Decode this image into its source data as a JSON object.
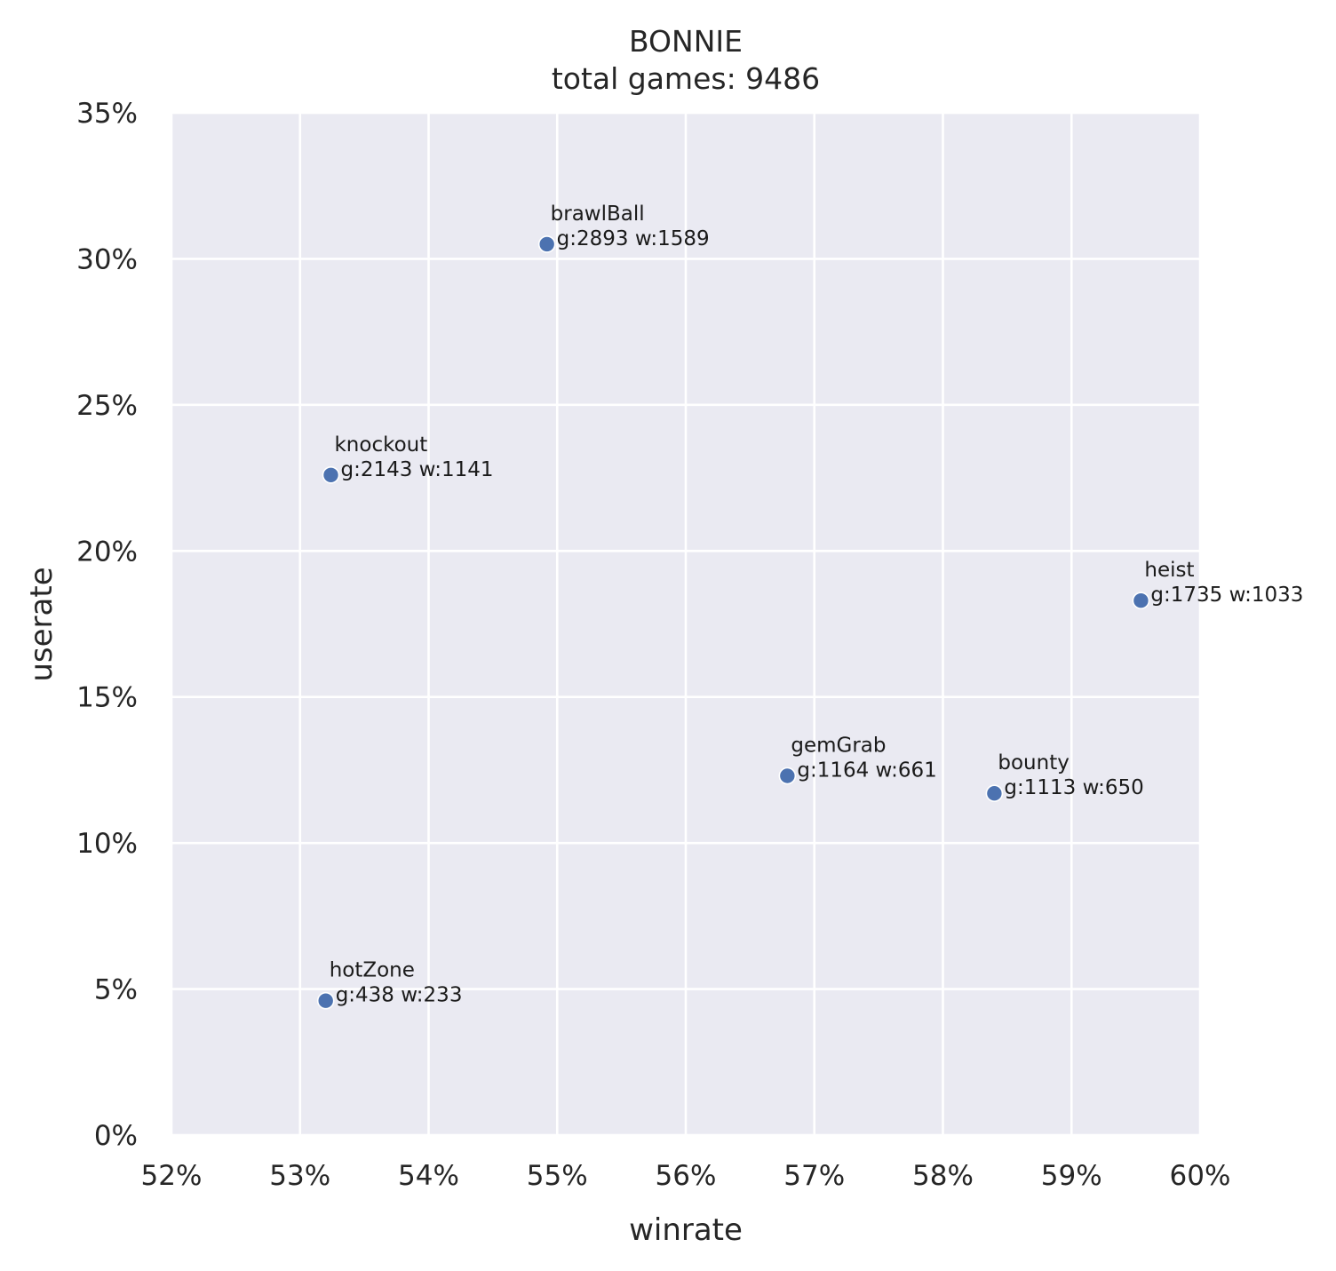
{
  "chart_data": {
    "type": "scatter",
    "title": "BONNIE",
    "subtitle": "total games: 9486",
    "xlabel": "winrate",
    "ylabel": "userate",
    "xlim": [
      52,
      60
    ],
    "ylim": [
      0,
      35
    ],
    "x_ticks": [
      52,
      53,
      54,
      55,
      56,
      57,
      58,
      59,
      60
    ],
    "y_ticks": [
      0,
      5,
      10,
      15,
      20,
      25,
      30,
      35
    ],
    "x_tick_labels": [
      "52%",
      "53%",
      "54%",
      "55%",
      "56%",
      "57%",
      "58%",
      "59%",
      "60%"
    ],
    "y_tick_labels": [
      "0%",
      "5%",
      "10%",
      "15%",
      "20%",
      "25%",
      "30%",
      "35%"
    ],
    "grid": true,
    "colors": {
      "background": "#eaeaf2",
      "grid": "#ffffff",
      "point": "#4c72b0"
    },
    "points": [
      {
        "name": "brawlBall",
        "x": 54.92,
        "y": 30.5,
        "info": "g:2893 w:1589"
      },
      {
        "name": "knockout",
        "x": 53.24,
        "y": 22.6,
        "info": "g:2143 w:1141"
      },
      {
        "name": "heist",
        "x": 59.54,
        "y": 18.3,
        "info": "g:1735 w:1033"
      },
      {
        "name": "gemGrab",
        "x": 56.79,
        "y": 12.3,
        "info": "g:1164 w:661"
      },
      {
        "name": "bounty",
        "x": 58.4,
        "y": 11.7,
        "info": "g:1113 w:650"
      },
      {
        "name": "hotZone",
        "x": 53.2,
        "y": 4.6,
        "info": "g:438 w:233"
      }
    ]
  }
}
